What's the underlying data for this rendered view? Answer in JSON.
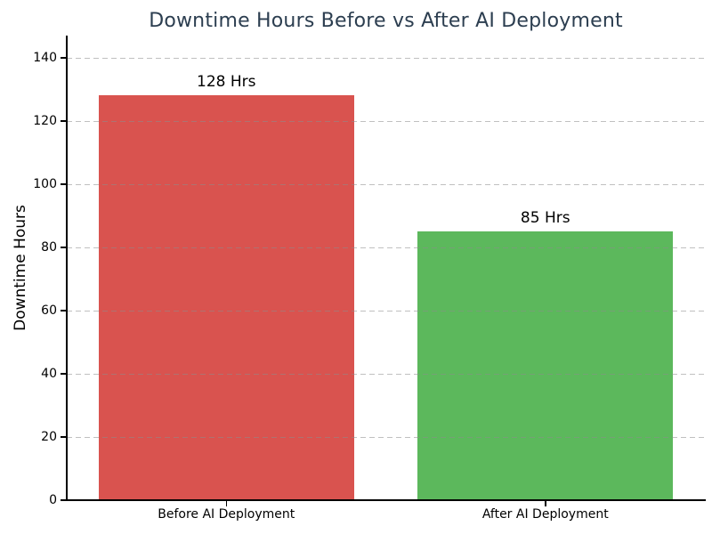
{
  "chart_data": {
    "type": "bar",
    "title": "Downtime Hours Before vs After AI Deployment",
    "title_color": "#2c3e50",
    "xlabel": "",
    "ylabel": "Downtime Hours",
    "categories": [
      "Before AI Deployment",
      "After AI Deployment"
    ],
    "values": [
      128,
      85
    ],
    "value_labels": [
      "128 Hrs",
      "85 Hrs"
    ],
    "bar_colors": [
      "#d9534f",
      "#5cb85c"
    ],
    "yticks": [
      0,
      20,
      40,
      60,
      80,
      100,
      120,
      140
    ],
    "ylim": [
      0,
      147
    ],
    "grid": "horizontal-dashed-over-bars",
    "gridline_color": "#8c8c8c",
    "legend": "none",
    "background_color": "#ffffff",
    "text_color": "#000000"
  }
}
